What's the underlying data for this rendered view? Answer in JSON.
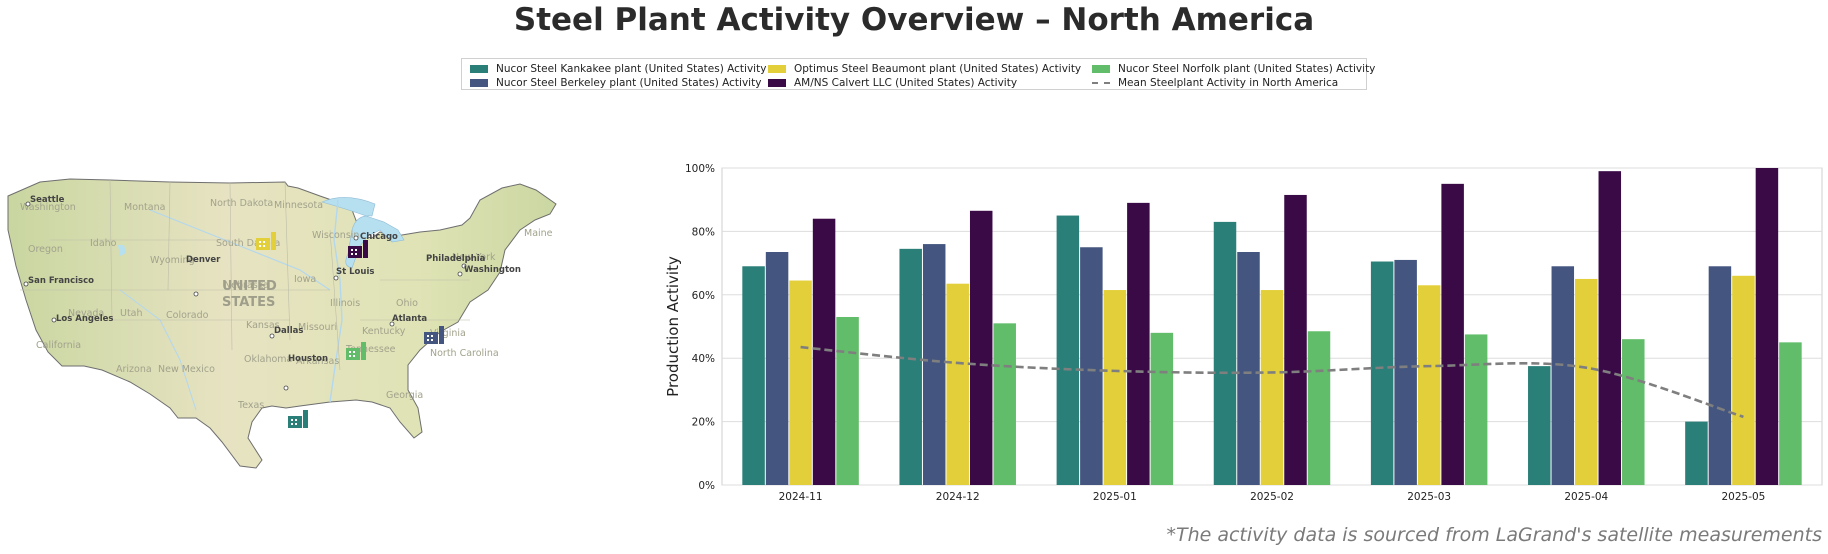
{
  "title": "Steel Plant Activity Overview – North America",
  "footnote": "*The activity data is sourced from LaGrand's satellite measurements",
  "legend": {
    "items": [
      {
        "label": "Nucor Steel Kankakee plant (United States) Activity",
        "color": "#2a7f78",
        "kind": "bar"
      },
      {
        "label": "Nucor Steel Berkeley plant (United States) Activity",
        "color": "#44567f",
        "kind": "bar"
      },
      {
        "label": "Optimus Steel Beaumont plant (United States) Activity",
        "color": "#e3cf3a",
        "kind": "bar"
      },
      {
        "label": "AM/NS Calvert LLC (United States) Activity",
        "color": "#3a0a47",
        "kind": "bar"
      },
      {
        "label": "Nucor Steel Norfolk plant (United States) Activity",
        "color": "#62bd6a",
        "kind": "bar"
      },
      {
        "label": "Mean Steelplant Activity in North America",
        "color": "#7f7f7f",
        "kind": "dash"
      }
    ]
  },
  "map": {
    "country_label_1": "UNITED",
    "country_label_2": "STATES",
    "states": [
      "Washington",
      "Montana",
      "North Dakota",
      "Minnesota",
      "Oregon",
      "Idaho",
      "South Dakota",
      "Wisconsin",
      "Wyoming",
      "Nebraska",
      "Iowa",
      "Nevada",
      "Utah",
      "Colorado",
      "Kansas",
      "Missouri",
      "Illinois",
      "Ohio",
      "California",
      "Arizona",
      "New Mexico",
      "Oklahoma",
      "Arkansas",
      "Tennessee",
      "Kentucky",
      "Virginia",
      "North Carolina",
      "Texas",
      "Georgia",
      "New York",
      "Maine"
    ],
    "cities": [
      "Seattle",
      "San Francisco",
      "Los Angeles",
      "Denver",
      "Dallas",
      "Houston",
      "Chicago",
      "St Louis",
      "Atlanta",
      "Philadelphia",
      "Washington"
    ],
    "plant_colors": [
      "#2a7f78",
      "#44567f",
      "#e3cf3a",
      "#3a0a47",
      "#62bd6a"
    ]
  },
  "chart_data": {
    "type": "bar",
    "title": "Steel Plant Activity Overview – North America",
    "xlabel": "",
    "ylabel": "Production Activity",
    "categories": [
      "2024-11",
      "2024-12",
      "2025-01",
      "2025-02",
      "2025-03",
      "2025-04",
      "2025-05"
    ],
    "ylim": [
      0,
      100
    ],
    "yticks": [
      "0%",
      "20%",
      "40%",
      "60%",
      "80%",
      "100%"
    ],
    "grid": true,
    "legend_position": "top-center",
    "series": [
      {
        "name": "Nucor Steel Kankakee plant (United States) Activity",
        "color": "#2a7f78",
        "values": [
          69,
          74.5,
          85,
          83,
          70.5,
          37.5,
          20
        ]
      },
      {
        "name": "Nucor Steel Berkeley plant (United States) Activity",
        "color": "#44567f",
        "values": [
          73.5,
          76,
          75,
          73.5,
          71,
          69,
          69
        ]
      },
      {
        "name": "Optimus Steel Beaumont plant (United States) Activity",
        "color": "#e3cf3a",
        "values": [
          64.5,
          63.5,
          61.5,
          61.5,
          63,
          65,
          66
        ]
      },
      {
        "name": "AM/NS Calvert LLC (United States) Activity",
        "color": "#3a0a47",
        "values": [
          84,
          86.5,
          89,
          91.5,
          95,
          99,
          100
        ]
      },
      {
        "name": "Nucor Steel Norfolk plant (United States) Activity",
        "color": "#62bd6a",
        "values": [
          53,
          51,
          48,
          48.5,
          47.5,
          46,
          45
        ]
      }
    ],
    "mean_line": {
      "name": "Mean Steelplant Activity in North America",
      "color": "#7f7f7f",
      "values": [
        43.5,
        38.5,
        36,
        35.5,
        37.5,
        37,
        21.5
      ]
    }
  }
}
